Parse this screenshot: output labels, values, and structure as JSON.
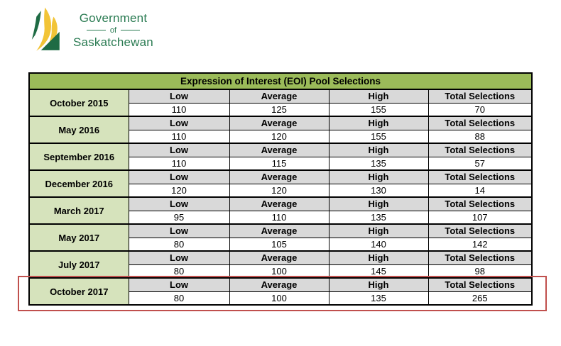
{
  "logo": {
    "line1": "Government",
    "line2": "of",
    "line3": "Saskatchewan"
  },
  "table": {
    "title": "Expression of Interest (EOI) Pool Selections",
    "column_headers": [
      "Low",
      "Average",
      "High",
      "Total Selections"
    ],
    "groups": [
      {
        "period": "October 2015",
        "low": "110",
        "average": "125",
        "high": "155",
        "total": "70",
        "highlighted": false
      },
      {
        "period": "May 2016",
        "low": "110",
        "average": "120",
        "high": "155",
        "total": "88",
        "highlighted": false
      },
      {
        "period": "September 2016",
        "low": "110",
        "average": "115",
        "high": "135",
        "total": "57",
        "highlighted": false
      },
      {
        "period": "December 2016",
        "low": "120",
        "average": "120",
        "high": "130",
        "total": "14",
        "highlighted": false
      },
      {
        "period": "March 2017",
        "low": "95",
        "average": "110",
        "high": "135",
        "total": "107",
        "highlighted": false
      },
      {
        "period": "May 2017",
        "low": "80",
        "average": "105",
        "high": "140",
        "total": "142",
        "highlighted": false
      },
      {
        "period": "July 2017",
        "low": "80",
        "average": "100",
        "high": "145",
        "total": "98",
        "highlighted": false
      },
      {
        "period": "October 2017",
        "low": "80",
        "average": "100",
        "high": "135",
        "total": "265",
        "highlighted": true
      }
    ]
  },
  "colors": {
    "title_bg": "#9BBB59",
    "period_bg": "#D6E3BC",
    "header_bg": "#D9D9D9",
    "cell_bg": "#FFFFFF",
    "table_border": "#000000",
    "highlight_box": "#C0504D",
    "logo_text_green": "#2A7B52",
    "logo_dark_green": "#1E6B44",
    "logo_gold": "#F2C437"
  }
}
